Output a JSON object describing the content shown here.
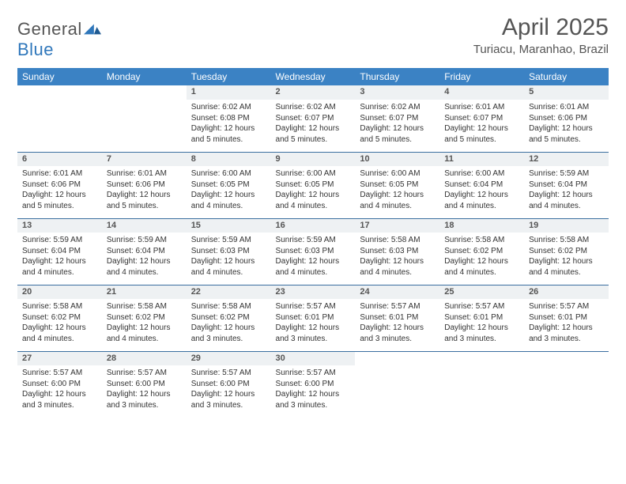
{
  "brand": {
    "word1": "General",
    "word2": "Blue"
  },
  "title": "April 2025",
  "location": "Turiacu, Maranhao, Brazil",
  "colors": {
    "header_bg": "#3b82c4",
    "header_text": "#ffffff",
    "daynum_bg": "#eef1f3",
    "rule": "#3b6fa0",
    "text": "#333333",
    "muted": "#555555",
    "brand_blue": "#2f77bb",
    "page_bg": "#ffffff"
  },
  "typography": {
    "title_fontsize": 30,
    "location_fontsize": 15,
    "dayhead_fontsize": 12,
    "daynum_fontsize": 11,
    "cell_fontsize": 10
  },
  "weekdays": [
    "Sunday",
    "Monday",
    "Tuesday",
    "Wednesday",
    "Thursday",
    "Friday",
    "Saturday"
  ],
  "weeks": [
    [
      null,
      null,
      {
        "n": "1",
        "sunrise": "6:02 AM",
        "sunset": "6:08 PM",
        "daylight": "12 hours and 5 minutes."
      },
      {
        "n": "2",
        "sunrise": "6:02 AM",
        "sunset": "6:07 PM",
        "daylight": "12 hours and 5 minutes."
      },
      {
        "n": "3",
        "sunrise": "6:02 AM",
        "sunset": "6:07 PM",
        "daylight": "12 hours and 5 minutes."
      },
      {
        "n": "4",
        "sunrise": "6:01 AM",
        "sunset": "6:07 PM",
        "daylight": "12 hours and 5 minutes."
      },
      {
        "n": "5",
        "sunrise": "6:01 AM",
        "sunset": "6:06 PM",
        "daylight": "12 hours and 5 minutes."
      }
    ],
    [
      {
        "n": "6",
        "sunrise": "6:01 AM",
        "sunset": "6:06 PM",
        "daylight": "12 hours and 5 minutes."
      },
      {
        "n": "7",
        "sunrise": "6:01 AM",
        "sunset": "6:06 PM",
        "daylight": "12 hours and 5 minutes."
      },
      {
        "n": "8",
        "sunrise": "6:00 AM",
        "sunset": "6:05 PM",
        "daylight": "12 hours and 4 minutes."
      },
      {
        "n": "9",
        "sunrise": "6:00 AM",
        "sunset": "6:05 PM",
        "daylight": "12 hours and 4 minutes."
      },
      {
        "n": "10",
        "sunrise": "6:00 AM",
        "sunset": "6:05 PM",
        "daylight": "12 hours and 4 minutes."
      },
      {
        "n": "11",
        "sunrise": "6:00 AM",
        "sunset": "6:04 PM",
        "daylight": "12 hours and 4 minutes."
      },
      {
        "n": "12",
        "sunrise": "5:59 AM",
        "sunset": "6:04 PM",
        "daylight": "12 hours and 4 minutes."
      }
    ],
    [
      {
        "n": "13",
        "sunrise": "5:59 AM",
        "sunset": "6:04 PM",
        "daylight": "12 hours and 4 minutes."
      },
      {
        "n": "14",
        "sunrise": "5:59 AM",
        "sunset": "6:04 PM",
        "daylight": "12 hours and 4 minutes."
      },
      {
        "n": "15",
        "sunrise": "5:59 AM",
        "sunset": "6:03 PM",
        "daylight": "12 hours and 4 minutes."
      },
      {
        "n": "16",
        "sunrise": "5:59 AM",
        "sunset": "6:03 PM",
        "daylight": "12 hours and 4 minutes."
      },
      {
        "n": "17",
        "sunrise": "5:58 AM",
        "sunset": "6:03 PM",
        "daylight": "12 hours and 4 minutes."
      },
      {
        "n": "18",
        "sunrise": "5:58 AM",
        "sunset": "6:02 PM",
        "daylight": "12 hours and 4 minutes."
      },
      {
        "n": "19",
        "sunrise": "5:58 AM",
        "sunset": "6:02 PM",
        "daylight": "12 hours and 4 minutes."
      }
    ],
    [
      {
        "n": "20",
        "sunrise": "5:58 AM",
        "sunset": "6:02 PM",
        "daylight": "12 hours and 4 minutes."
      },
      {
        "n": "21",
        "sunrise": "5:58 AM",
        "sunset": "6:02 PM",
        "daylight": "12 hours and 4 minutes."
      },
      {
        "n": "22",
        "sunrise": "5:58 AM",
        "sunset": "6:02 PM",
        "daylight": "12 hours and 3 minutes."
      },
      {
        "n": "23",
        "sunrise": "5:57 AM",
        "sunset": "6:01 PM",
        "daylight": "12 hours and 3 minutes."
      },
      {
        "n": "24",
        "sunrise": "5:57 AM",
        "sunset": "6:01 PM",
        "daylight": "12 hours and 3 minutes."
      },
      {
        "n": "25",
        "sunrise": "5:57 AM",
        "sunset": "6:01 PM",
        "daylight": "12 hours and 3 minutes."
      },
      {
        "n": "26",
        "sunrise": "5:57 AM",
        "sunset": "6:01 PM",
        "daylight": "12 hours and 3 minutes."
      }
    ],
    [
      {
        "n": "27",
        "sunrise": "5:57 AM",
        "sunset": "6:00 PM",
        "daylight": "12 hours and 3 minutes."
      },
      {
        "n": "28",
        "sunrise": "5:57 AM",
        "sunset": "6:00 PM",
        "daylight": "12 hours and 3 minutes."
      },
      {
        "n": "29",
        "sunrise": "5:57 AM",
        "sunset": "6:00 PM",
        "daylight": "12 hours and 3 minutes."
      },
      {
        "n": "30",
        "sunrise": "5:57 AM",
        "sunset": "6:00 PM",
        "daylight": "12 hours and 3 minutes."
      },
      null,
      null,
      null
    ]
  ],
  "labels": {
    "sunrise": "Sunrise:",
    "sunset": "Sunset:",
    "daylight": "Daylight:"
  }
}
